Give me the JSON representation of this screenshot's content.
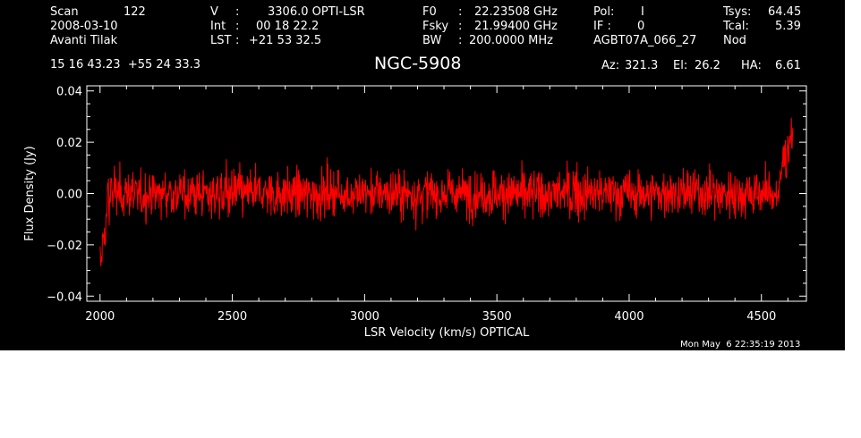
{
  "header": {
    "row1": {
      "scan_label": "Scan",
      "scan_value": "122",
      "v_label": "V",
      "v_sep": ":",
      "v_value": "3306.0 OPTI-LSR",
      "f0_label": "F0",
      "f0_sep": ":",
      "f0_value": "22.23508 GHz",
      "pol_label": "Pol:",
      "pol_value": "I",
      "tsys_label": "Tsys:",
      "tsys_value": "64.45"
    },
    "row2": {
      "date": "2008-03-10",
      "int_label": "Int",
      "int_sep": ":",
      "int_value": "00 18 22.2",
      "fsky_label": "Fsky",
      "fsky_sep": ":",
      "fsky_value": "21.99400 GHz",
      "if_label": "IF :",
      "if_value": "0",
      "tcal_label": "Tcal:",
      "tcal_value": "5.39"
    },
    "row3": {
      "observer": "Avanti Tilak",
      "lst_label": "LST",
      "lst_sep": ":",
      "lst_value": "+21 53 32.5",
      "bw_label": "BW",
      "bw_sep": ":",
      "bw_value": "200.0000 MHz",
      "project": "AGBT07A_066_27",
      "mode": "Nod"
    },
    "coords": "15 16 43.23  +55 24 33.3",
    "source": "NGC-5908",
    "az_label": "Az:",
    "az_value": "321.3",
    "el_label": "El:",
    "el_value": "26.2",
    "ha_label": "HA:",
    "ha_value": "6.61"
  },
  "timestamp": "Mon May  6 22:35:19 2013",
  "colors": {
    "background": "#000000",
    "axes": "#ffffff",
    "series": "#ff0000"
  },
  "chart_data": {
    "type": "line",
    "title": "NGC-5908",
    "xlabel": "LSR Velocity (km/s) OPTICAL",
    "ylabel": "Flux Density (Jy)",
    "xlim": [
      1950,
      4670
    ],
    "ylim": [
      -0.042,
      0.042
    ],
    "xticks": [
      2000,
      2500,
      3000,
      3500,
      4000,
      4500
    ],
    "xtick_labels": [
      "2000",
      "2500",
      "3000",
      "3500",
      "4000",
      "4500"
    ],
    "yticks": [
      -0.04,
      -0.02,
      0.0,
      0.02,
      0.04
    ],
    "ytick_labels": [
      "−0.04",
      "−0.02",
      "0.00",
      "0.02",
      "0.04"
    ],
    "grid": false,
    "series": [
      {
        "x_start": 2000,
        "x_end": 4620,
        "x_step": 5,
        "noise_rms": 0.0055,
        "spike_max": 0.022,
        "values_low_edge": [
          [
            2000,
            -0.026
          ],
          [
            2005,
            -0.028
          ],
          [
            2010,
            -0.018
          ],
          [
            2015,
            -0.012
          ],
          [
            2020,
            -0.022
          ],
          [
            2025,
            -0.008
          ],
          [
            2030,
            0.004
          ],
          [
            2035,
            -0.01
          ],
          [
            2040,
            0.008
          ],
          [
            2045,
            0.002
          ]
        ],
        "values_high_edge": [
          [
            4570,
            0.004
          ],
          [
            4580,
            0.012
          ],
          [
            4590,
            0.018
          ],
          [
            4595,
            0.01
          ],
          [
            4600,
            0.022
          ],
          [
            4605,
            0.015
          ],
          [
            4610,
            0.026
          ],
          [
            4615,
            0.02
          ],
          [
            4620,
            0.028
          ]
        ]
      }
    ]
  }
}
